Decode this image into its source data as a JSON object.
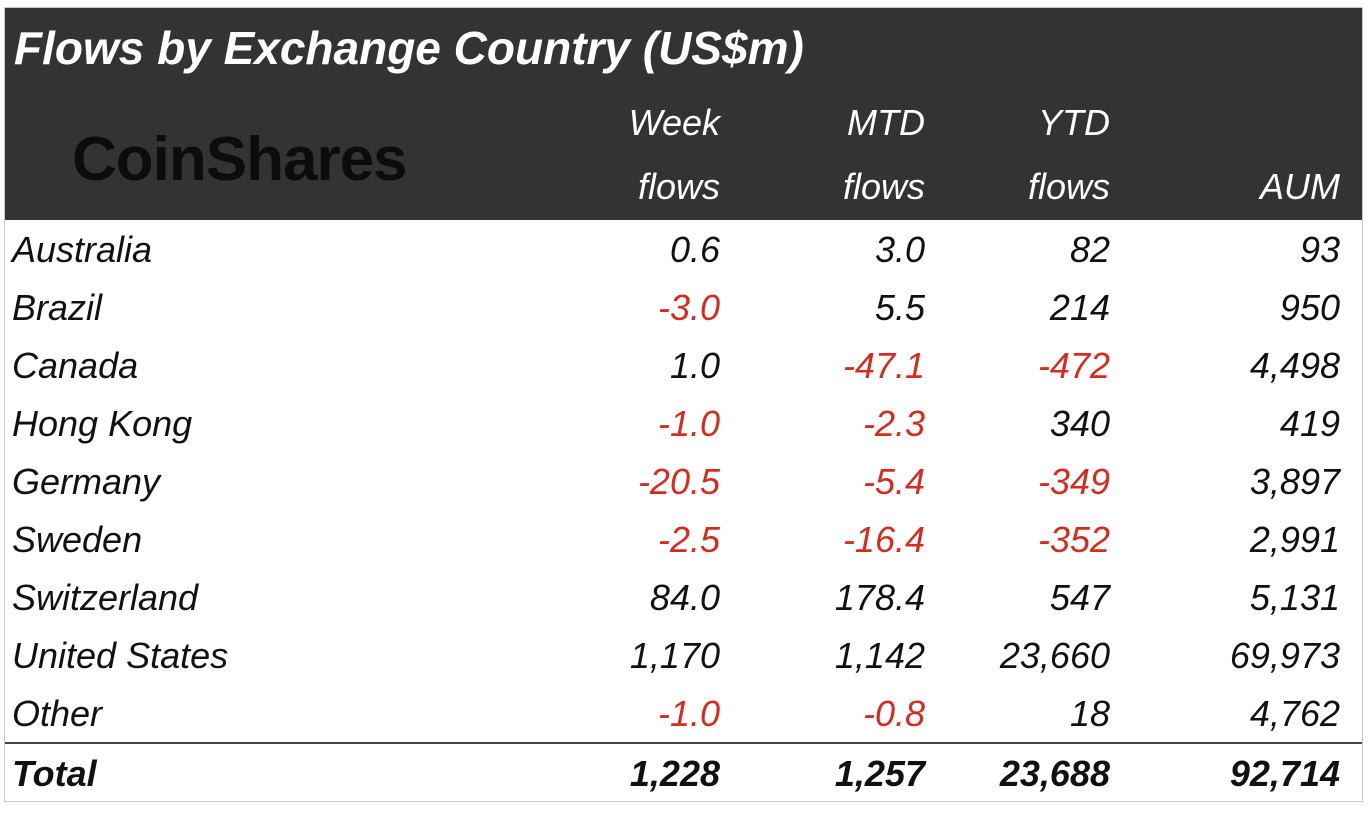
{
  "header": {
    "title": "Flows by Exchange Country (US$m)",
    "logo": "CoinShares"
  },
  "table": {
    "columns": [
      [
        "Week",
        "flows"
      ],
      [
        "MTD",
        "flows"
      ],
      [
        "YTD",
        "flows"
      ],
      [
        "AUM"
      ]
    ],
    "rows": [
      [
        "Australia",
        "0.6",
        "3.0",
        "82",
        "93"
      ],
      [
        "Brazil",
        "-3.0",
        "5.5",
        "214",
        "950"
      ],
      [
        "Canada",
        "1.0",
        "-47.1",
        "-472",
        "4,498"
      ],
      [
        "Hong Kong",
        "-1.0",
        "-2.3",
        "340",
        "419"
      ],
      [
        "Germany",
        "-20.5",
        "-5.4",
        "-349",
        "3,897"
      ],
      [
        "Sweden",
        "-2.5",
        "-16.4",
        "-352",
        "2,991"
      ],
      [
        "Switzerland",
        "84.0",
        "178.4",
        "547",
        "5,131"
      ],
      [
        "United States",
        "1,170",
        "1,142",
        "23,660",
        "69,973"
      ],
      [
        "Other",
        "-1.0",
        "-0.8",
        "18",
        "4,762"
      ]
    ],
    "total": [
      "Total",
      "1,228",
      "1,257",
      "23,688",
      "92,714"
    ]
  }
}
